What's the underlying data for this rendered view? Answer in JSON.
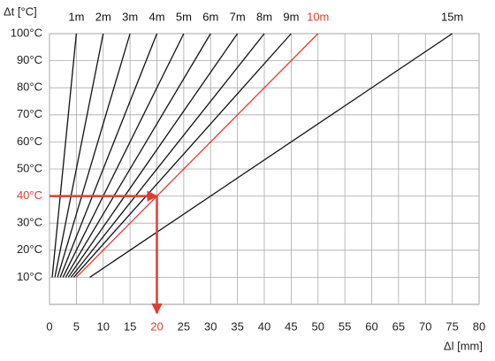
{
  "chart_data": {
    "type": "line",
    "y_label": "Δt [°C]",
    "x_label": "Δl [mm]",
    "xlim": [
      0,
      80
    ],
    "ylim": [
      0,
      100
    ],
    "xticks": [
      0,
      5,
      10,
      15,
      20,
      25,
      30,
      35,
      40,
      45,
      50,
      55,
      60,
      65,
      70,
      75,
      80
    ],
    "yticks": [
      {
        "value": 10,
        "label": "10°C"
      },
      {
        "value": 20,
        "label": "20°C"
      },
      {
        "value": 30,
        "label": "30°C"
      },
      {
        "value": 40,
        "label": "40°C"
      },
      {
        "value": 50,
        "label": "50°C"
      },
      {
        "value": 60,
        "label": "60°C"
      },
      {
        "value": 70,
        "label": "70°C"
      },
      {
        "value": 80,
        "label": "80°C"
      },
      {
        "value": 90,
        "label": "90°C"
      },
      {
        "value": 100,
        "label": "100°C"
      }
    ],
    "grid": true,
    "series": [
      {
        "name": "1m",
        "color": "#111111",
        "x": [
          0.5,
          5
        ],
        "values": [
          10,
          100
        ]
      },
      {
        "name": "2m",
        "color": "#111111",
        "x": [
          1,
          10
        ],
        "values": [
          10,
          100
        ]
      },
      {
        "name": "3m",
        "color": "#111111",
        "x": [
          1.5,
          15
        ],
        "values": [
          10,
          100
        ]
      },
      {
        "name": "4m",
        "color": "#111111",
        "x": [
          2,
          20
        ],
        "values": [
          10,
          100
        ]
      },
      {
        "name": "5m",
        "color": "#111111",
        "x": [
          2.5,
          25
        ],
        "values": [
          10,
          100
        ]
      },
      {
        "name": "6m",
        "color": "#111111",
        "x": [
          3,
          30
        ],
        "values": [
          10,
          100
        ]
      },
      {
        "name": "7m",
        "color": "#111111",
        "x": [
          3.5,
          35
        ],
        "values": [
          10,
          100
        ]
      },
      {
        "name": "8m",
        "color": "#111111",
        "x": [
          4,
          40
        ],
        "values": [
          10,
          100
        ]
      },
      {
        "name": "9m",
        "color": "#111111",
        "x": [
          4.5,
          45
        ],
        "values": [
          10,
          100
        ]
      },
      {
        "name": "10m",
        "color": "#e03c31",
        "x": [
          5,
          50
        ],
        "values": [
          10,
          100
        ]
      },
      {
        "name": "15m",
        "color": "#111111",
        "x": [
          7.5,
          75
        ],
        "values": [
          10,
          100
        ]
      }
    ],
    "highlight": {
      "x": 20,
      "y": 40,
      "color": "#e03c31"
    }
  }
}
